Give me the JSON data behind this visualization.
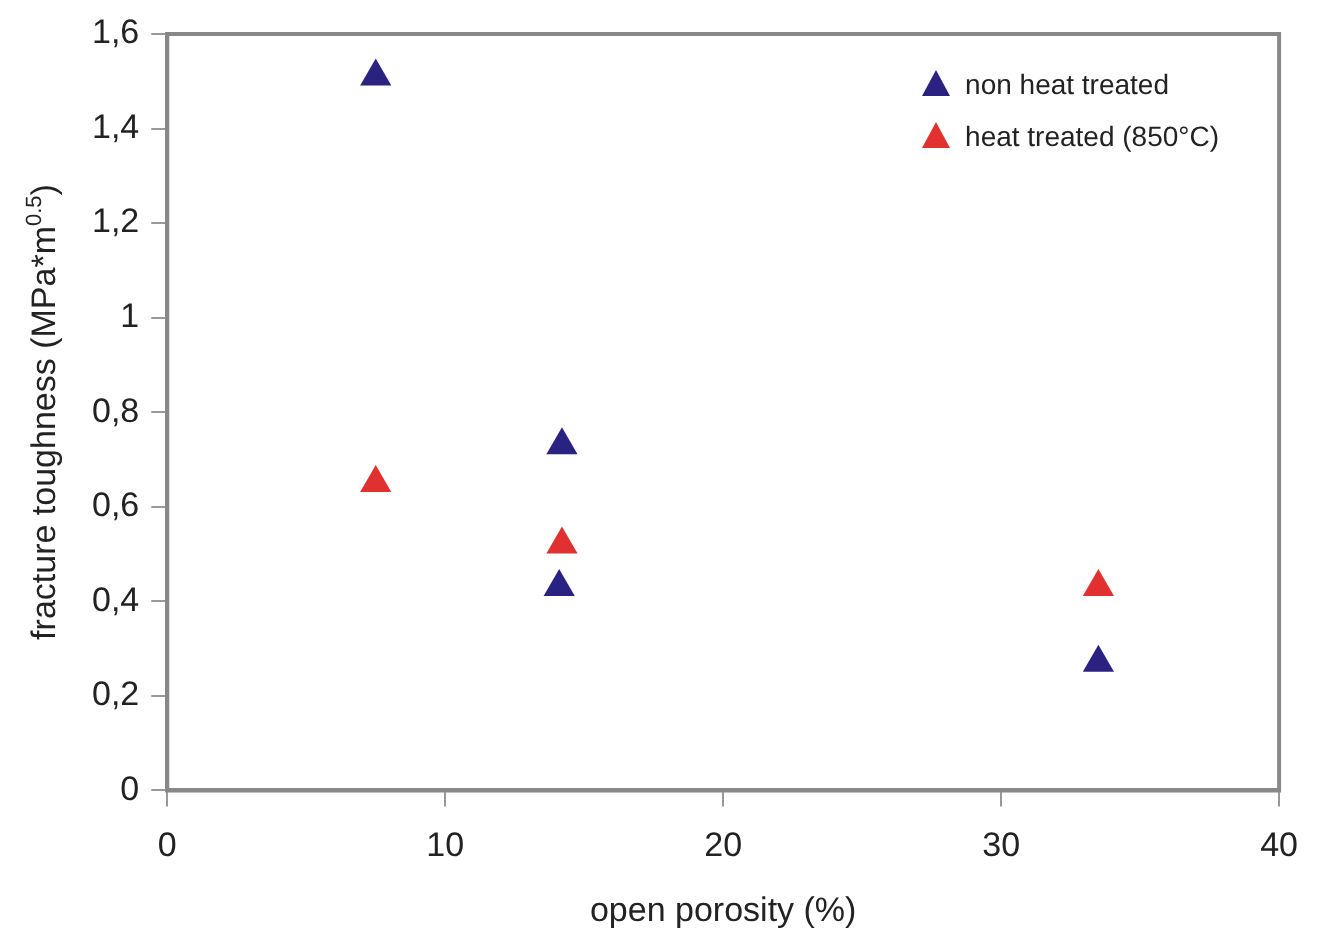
{
  "chart_data": {
    "type": "scatter",
    "xlabel": "open porosity (%)",
    "ylabel": "fracture toughness (MPa*m$^{0.5}$)",
    "xlim": [
      0,
      40
    ],
    "xticks": [
      0,
      10,
      20,
      30,
      40
    ],
    "ylim": [
      0,
      1.6
    ],
    "yticks": [
      0,
      {
        "value": 0.2,
        "label": "0,2"
      },
      {
        "value": 0.4,
        "label": "0,4"
      },
      {
        "value": 0.6,
        "label": "0,6"
      },
      {
        "value": 0.8,
        "label": "0,8"
      },
      1,
      {
        "value": 1.2,
        "label": "1,2"
      },
      {
        "value": 1.4,
        "label": "1,4"
      },
      {
        "value": 1.6,
        "label": "1,6"
      }
    ],
    "series": [
      {
        "name": "non heat treated",
        "color": "#2a2280",
        "x": [
          7.5,
          14.2,
          14.1,
          33.5
        ],
        "values": [
          1.51,
          0.73,
          0.43,
          0.27
        ]
      },
      {
        "name": "heat treated (850°C)",
        "color": "#e03030",
        "x": [
          7.5,
          14.2,
          33.5
        ],
        "values": [
          0.65,
          0.52,
          0.43
        ]
      }
    ],
    "marker": "triangle",
    "grid": false,
    "legend": "top right"
  }
}
